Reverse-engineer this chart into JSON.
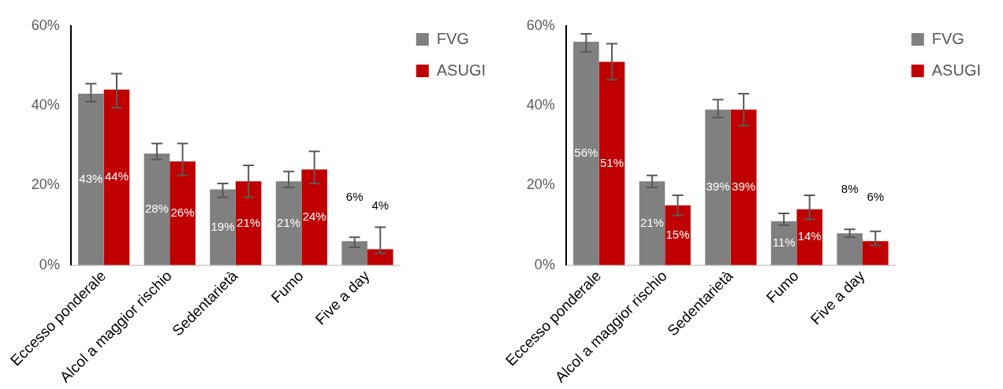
{
  "chart_data": [
    {
      "type": "bar",
      "categories": [
        "Eccesso ponderale",
        "Alcol a maggior rischio",
        "Sedentarietà",
        "Fumo",
        "Five a day"
      ],
      "series": [
        {
          "name": "FVG",
          "color": "#808080",
          "values": [
            43,
            28,
            19,
            21,
            6
          ],
          "value_labels": [
            "43%",
            "28%",
            "19%",
            "21%",
            "6%"
          ],
          "errors": [
            [
              41,
              45.5
            ],
            [
              26.5,
              30.5
            ],
            [
              17,
              20.5
            ],
            [
              19.5,
              23.5
            ],
            [
              4.5,
              7
            ]
          ]
        },
        {
          "name": "ASUGI",
          "color": "#c00000",
          "values": [
            44,
            26,
            21,
            24,
            4
          ],
          "value_labels": [
            "44%",
            "26%",
            "21%",
            "24%",
            "4%"
          ],
          "errors": [
            [
              39.5,
              48
            ],
            [
              22.5,
              30.5
            ],
            [
              17,
              25
            ],
            [
              20.5,
              28.5
            ],
            [
              3,
              9.5
            ]
          ]
        }
      ],
      "ylim": [
        0,
        60
      ],
      "yticks": [
        {
          "value": 0,
          "label": "0%"
        },
        {
          "value": 20,
          "label": "20%"
        },
        {
          "value": 40,
          "label": "40%"
        },
        {
          "value": 60,
          "label": "60%"
        }
      ],
      "grid": false,
      "legend": "top right"
    },
    {
      "type": "bar",
      "categories": [
        "Eccesso ponderale",
        "Alcol a maggior rischio",
        "Sedentarietà",
        "Fumo",
        "Five a day"
      ],
      "series": [
        {
          "name": "FVG",
          "color": "#808080",
          "values": [
            56,
            21,
            39,
            11,
            8
          ],
          "value_labels": [
            "56%",
            "21%",
            "39%",
            "11%",
            "8%"
          ],
          "errors": [
            [
              53.5,
              58
            ],
            [
              19.5,
              22.5
            ],
            [
              37,
              41.5
            ],
            [
              10,
              13
            ],
            [
              7,
              9
            ]
          ]
        },
        {
          "name": "ASUGI",
          "color": "#c00000",
          "values": [
            51,
            15,
            39,
            14,
            6
          ],
          "value_labels": [
            "51%",
            "15%",
            "39%",
            "14%",
            "6%"
          ],
          "errors": [
            [
              46.5,
              55.5
            ],
            [
              12.5,
              17.5
            ],
            [
              35,
              43
            ],
            [
              11.5,
              17.5
            ],
            [
              5,
              8.5
            ]
          ]
        }
      ],
      "ylim": [
        0,
        60
      ],
      "yticks": [
        {
          "value": 0,
          "label": "0%"
        },
        {
          "value": 20,
          "label": "20%"
        },
        {
          "value": 40,
          "label": "40%"
        },
        {
          "value": 60,
          "label": "60%"
        }
      ],
      "grid": false,
      "legend": "top right"
    }
  ]
}
